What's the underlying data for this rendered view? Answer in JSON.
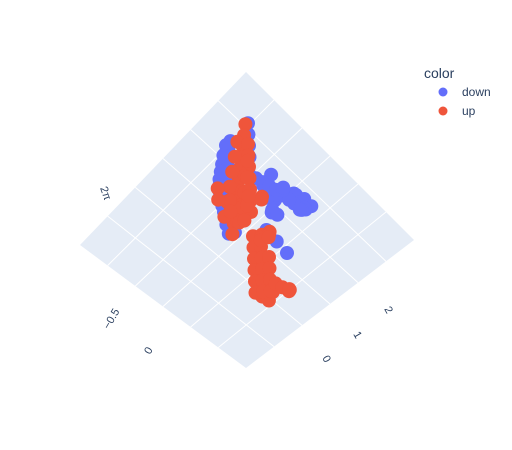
{
  "chart_data": {
    "type": "scatter",
    "dimensions": 3,
    "colors": {
      "down": "#636efa",
      "up": "#ef553b",
      "plot_background": "#e5ecf6",
      "grid": "#ffffff",
      "text": "#2a3f5f"
    },
    "legend": {
      "title": "color",
      "placement": "top-right",
      "entries": [
        {
          "name": "down",
          "color": "#636efa"
        },
        {
          "name": "up",
          "color": "#ef553b"
        }
      ]
    },
    "axes": {
      "x": {
        "title": "",
        "range": [
          -1,
          3
        ],
        "ticks": [
          "0",
          "1",
          "2"
        ]
      },
      "y": {
        "title": "",
        "range": [
          -1,
          1
        ],
        "ticks": [
          "−0.5",
          "0"
        ]
      },
      "z": {
        "title": "",
        "ticks": [
          "2π"
        ]
      }
    },
    "series": [
      {
        "name": "down",
        "points": [
          [
            -0.95,
            -0.3,
            0.9
          ],
          [
            -0.92,
            -0.25,
            0.82
          ],
          [
            -0.9,
            -0.2,
            0.95
          ],
          [
            -0.88,
            -0.28,
            0.7
          ],
          [
            -0.85,
            -0.15,
            0.88
          ],
          [
            -0.82,
            -0.22,
            0.78
          ],
          [
            -0.8,
            -0.1,
            0.92
          ],
          [
            -0.78,
            -0.18,
            0.65
          ],
          [
            -0.75,
            -0.05,
            0.85
          ],
          [
            -0.72,
            -0.12,
            0.72
          ],
          [
            -0.7,
            0.0,
            0.8
          ],
          [
            -0.68,
            -0.08,
            0.6
          ],
          [
            -0.65,
            0.05,
            0.75
          ],
          [
            -0.62,
            -0.02,
            0.68
          ],
          [
            -0.6,
            0.08,
            0.7
          ],
          [
            -0.58,
            0.0,
            0.55
          ],
          [
            -0.55,
            0.1,
            0.62
          ],
          [
            -0.52,
            0.02,
            0.5
          ],
          [
            -0.5,
            0.12,
            0.58
          ],
          [
            -0.45,
            0.05,
            0.45
          ],
          [
            -0.4,
            0.15,
            0.5
          ],
          [
            -0.35,
            0.08,
            0.4
          ],
          [
            -0.3,
            0.18,
            0.45
          ],
          [
            -0.25,
            0.1,
            0.35
          ],
          [
            -0.2,
            0.2,
            0.3
          ],
          [
            -0.15,
            0.12,
            0.25
          ],
          [
            -0.1,
            0.22,
            0.2
          ],
          [
            -0.05,
            0.15,
            0.15
          ],
          [
            0.0,
            -0.4,
            0.1
          ],
          [
            0.05,
            -0.45,
            0.05
          ],
          [
            0.1,
            -0.5,
            0.0
          ],
          [
            0.15,
            -0.55,
            -0.05
          ],
          [
            0.2,
            -0.6,
            -0.1
          ],
          [
            0.1,
            -0.65,
            -0.15
          ],
          [
            0.05,
            -0.7,
            -0.2
          ],
          [
            0.0,
            -0.75,
            -0.25
          ],
          [
            -0.05,
            -0.8,
            -0.3
          ],
          [
            0.15,
            -0.72,
            -0.22
          ],
          [
            0.25,
            -0.68,
            -0.28
          ],
          [
            0.3,
            -0.75,
            -0.35
          ],
          [
            0.2,
            -0.82,
            -0.4
          ],
          [
            0.1,
            -0.88,
            -0.45
          ],
          [
            0.35,
            -0.85,
            -0.5
          ],
          [
            0.4,
            -0.78,
            -0.42
          ],
          [
            0.45,
            -0.7,
            -0.38
          ],
          [
            0.5,
            -0.65,
            -0.3
          ],
          [
            0.3,
            -0.6,
            -0.2
          ],
          [
            0.25,
            -0.55,
            -0.1
          ],
          [
            0.55,
            -0.58,
            -0.25
          ],
          [
            0.6,
            -0.52,
            -0.18
          ],
          [
            0.2,
            -0.35,
            0.1
          ],
          [
            0.3,
            -0.3,
            0.2
          ],
          [
            0.4,
            -0.25,
            0.3
          ],
          [
            1.2,
            0.4,
            1.2
          ],
          [
            1.3,
            0.35,
            1.3
          ],
          [
            1.25,
            0.45,
            1.25
          ],
          [
            1.1,
            0.3,
            0.9
          ],
          [
            0.9,
            0.1,
            0.5
          ],
          [
            0.8,
            0.05,
            0.4
          ],
          [
            0.7,
            -0.1,
            0.2
          ],
          [
            -0.7,
            -0.35,
            0.45
          ],
          [
            -0.6,
            -0.4,
            0.35
          ],
          [
            -0.5,
            -0.45,
            0.25
          ],
          [
            -0.4,
            -0.5,
            0.15
          ],
          [
            -0.3,
            -0.55,
            0.05
          ],
          [
            -0.2,
            -0.6,
            -0.05
          ],
          [
            -0.1,
            -0.65,
            -0.1
          ],
          [
            0.0,
            -0.6,
            0.0
          ],
          [
            1.6,
            0.6,
            0.8
          ],
          [
            1.8,
            0.55,
            0.6
          ],
          [
            2.0,
            0.5,
            0.4
          ],
          [
            0.6,
            0.3,
            1.6
          ],
          [
            0.5,
            0.25,
            1.7
          ],
          [
            0.4,
            0.2,
            1.8
          ],
          [
            0.7,
            0.35,
            1.5
          ]
        ]
      },
      {
        "name": "up",
        "points": [
          [
            0.5,
            0.3,
            1.9
          ],
          [
            0.55,
            0.35,
            1.8
          ],
          [
            0.6,
            0.4,
            1.7
          ],
          [
            0.65,
            0.45,
            1.6
          ],
          [
            0.7,
            0.5,
            1.5
          ],
          [
            0.75,
            0.55,
            1.4
          ],
          [
            0.8,
            0.6,
            1.3
          ],
          [
            0.85,
            0.65,
            1.2
          ],
          [
            0.9,
            0.7,
            1.1
          ],
          [
            0.95,
            0.75,
            1.0
          ],
          [
            1.0,
            0.8,
            0.9
          ],
          [
            0.45,
            0.4,
            1.75
          ],
          [
            0.55,
            0.5,
            1.65
          ],
          [
            0.65,
            0.6,
            1.55
          ],
          [
            0.75,
            0.7,
            1.45
          ],
          [
            0.85,
            0.8,
            1.35
          ],
          [
            0.95,
            0.9,
            1.25
          ],
          [
            0.4,
            0.2,
            1.5
          ],
          [
            0.5,
            0.25,
            1.4
          ],
          [
            0.6,
            0.3,
            1.3
          ],
          [
            0.7,
            0.35,
            1.2
          ],
          [
            0.8,
            0.4,
            1.1
          ],
          [
            0.9,
            0.45,
            1.0
          ],
          [
            1.0,
            0.5,
            0.9
          ],
          [
            0.3,
            0.15,
            1.2
          ],
          [
            0.4,
            0.25,
            1.1
          ],
          [
            0.5,
            0.35,
            1.0
          ],
          [
            0.6,
            0.45,
            0.9
          ],
          [
            0.7,
            0.55,
            0.8
          ],
          [
            0.2,
            0.1,
            0.9
          ],
          [
            0.3,
            0.2,
            0.8
          ],
          [
            0.4,
            0.3,
            0.7
          ],
          [
            0.5,
            0.4,
            0.6
          ],
          [
            0.1,
            0.0,
            0.6
          ],
          [
            0.2,
            0.1,
            0.5
          ],
          [
            0.3,
            0.2,
            0.4
          ],
          [
            1.4,
            0.7,
            0.8
          ],
          [
            1.5,
            0.75,
            0.7
          ],
          [
            1.6,
            0.8,
            0.6
          ],
          [
            1.7,
            0.85,
            0.5
          ],
          [
            1.8,
            0.9,
            0.4
          ],
          [
            1.9,
            0.95,
            0.3
          ],
          [
            2.0,
            0.9,
            0.2
          ],
          [
            2.1,
            0.85,
            0.1
          ],
          [
            1.45,
            0.6,
            0.55
          ],
          [
            1.55,
            0.65,
            0.45
          ],
          [
            1.65,
            0.7,
            0.35
          ],
          [
            1.75,
            0.75,
            0.25
          ],
          [
            1.85,
            0.8,
            0.15
          ],
          [
            1.95,
            0.7,
            0.05
          ],
          [
            1.5,
            0.5,
            0.3
          ],
          [
            1.6,
            0.55,
            0.2
          ],
          [
            1.7,
            0.6,
            0.1
          ],
          [
            1.8,
            0.65,
            0.0
          ],
          [
            1.3,
            0.5,
            0.6
          ],
          [
            1.2,
            0.45,
            0.5
          ],
          [
            1.1,
            0.4,
            0.4
          ],
          [
            2.2,
            0.8,
            0.3
          ],
          [
            2.3,
            0.75,
            0.2
          ],
          [
            2.4,
            0.7,
            0.1
          ],
          [
            2.25,
            0.6,
            0.0
          ],
          [
            2.15,
            0.55,
            -0.05
          ],
          [
            1.0,
            0.2,
            0.3
          ],
          [
            0.9,
            0.15,
            0.2
          ],
          [
            0.8,
            0.1,
            0.1
          ],
          [
            0.1,
            -0.2,
            0.3
          ],
          [
            0.0,
            -0.25,
            0.2
          ],
          [
            -0.1,
            -0.1,
            0.4
          ],
          [
            1.1,
            0.9,
            1.5
          ],
          [
            1.2,
            0.95,
            1.4
          ],
          [
            0.85,
            0.95,
            1.7
          ],
          [
            0.95,
            1.0,
            1.6
          ]
        ]
      }
    ]
  }
}
